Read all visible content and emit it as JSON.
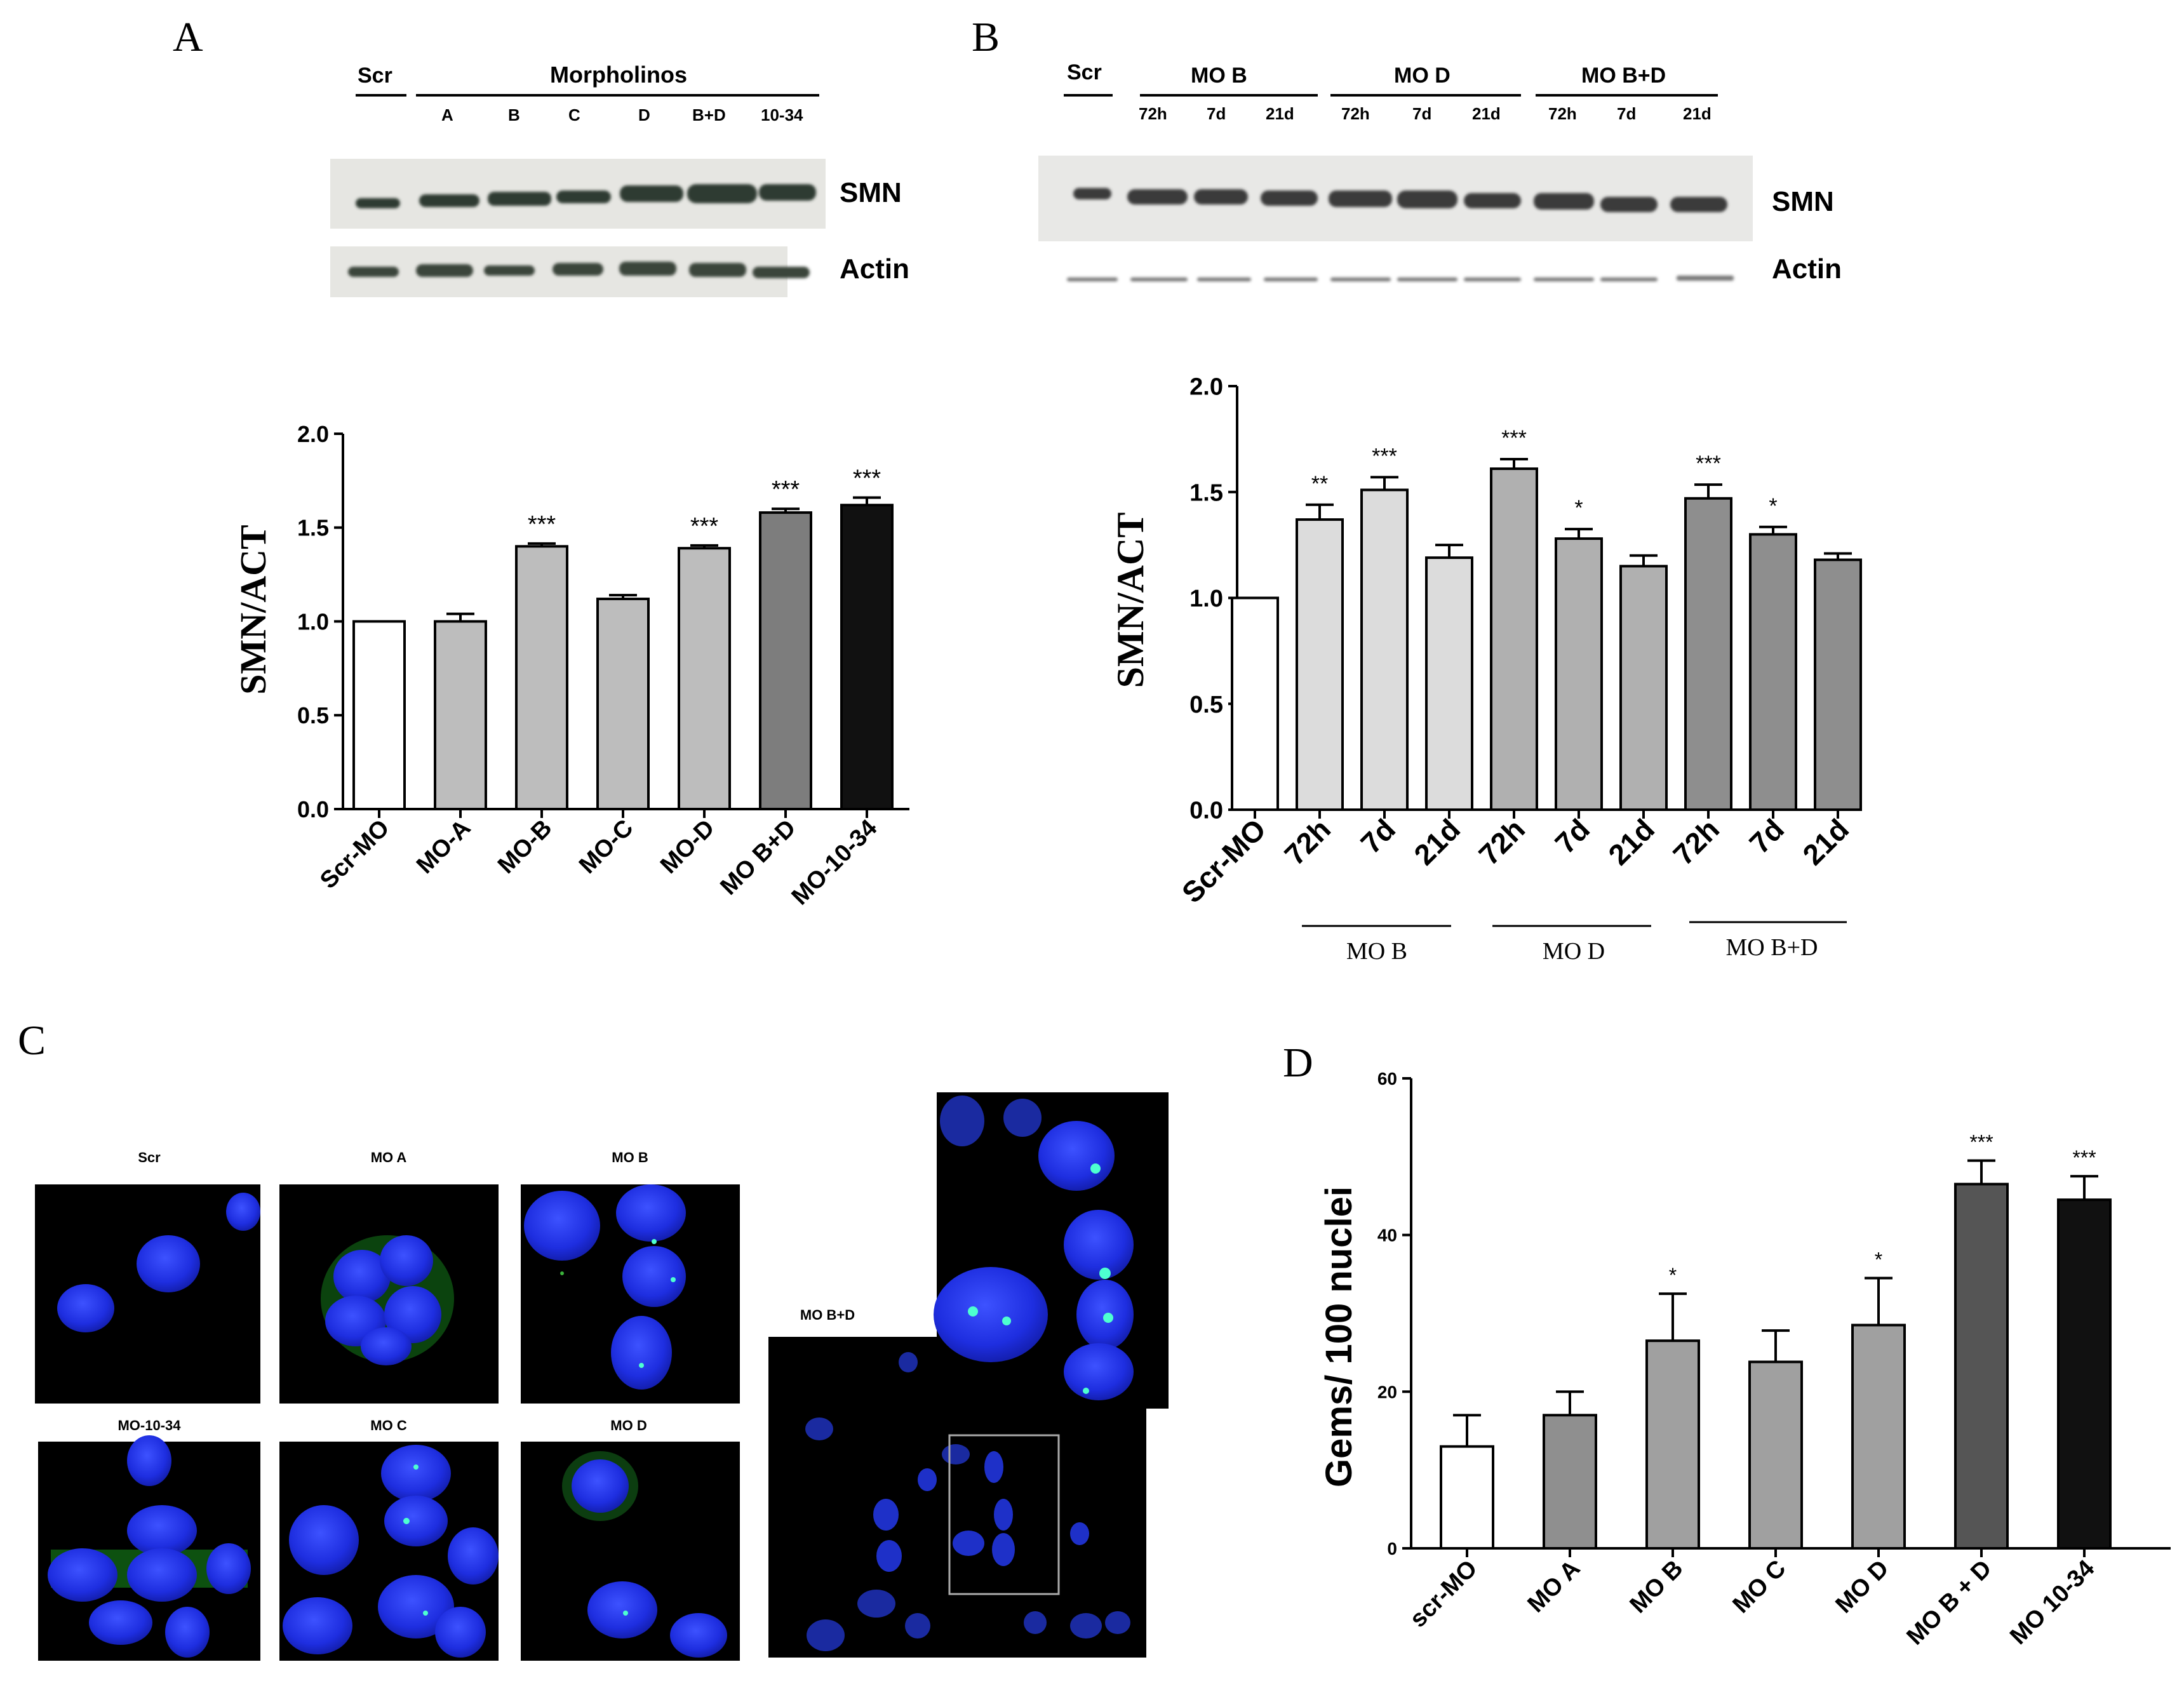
{
  "panels": {
    "A": {
      "letter": "A",
      "blot": {
        "scr_label": "Scr",
        "group_label": "Morpholinos",
        "lanes": [
          "A",
          "B",
          "C",
          "D",
          "B+D",
          "10-34"
        ],
        "bands": [
          "SMN",
          "Actin"
        ]
      }
    },
    "B": {
      "letter": "B",
      "blot": {
        "scr_label": "Scr",
        "groups": [
          {
            "name": "MO B",
            "lanes": [
              "72h",
              "7d",
              "21d"
            ]
          },
          {
            "name": "MO D",
            "lanes": [
              "72h",
              "7d",
              "21d"
            ]
          },
          {
            "name": "MO B+D",
            "lanes": [
              "72h",
              "7d",
              "21d"
            ]
          }
        ],
        "bands": [
          "SMN",
          "Actin"
        ]
      },
      "group_underlines": [
        "MO B",
        "MO D",
        "MO B+D"
      ]
    },
    "C": {
      "letter": "C",
      "images": [
        "Scr",
        "MO A",
        "MO B",
        "MO-10-34",
        "MO C",
        "MO D"
      ],
      "large_image": "MO B+D"
    },
    "D": {
      "letter": "D"
    }
  },
  "chart_data": [
    {
      "type": "bar",
      "panel": "A",
      "ylabel": "SMN/ACT",
      "ylim": [
        0,
        2.0
      ],
      "yticks": [
        "0.0",
        "0.5",
        "1.0",
        "1.5",
        "2.0"
      ],
      "categories": [
        "Scr-MO",
        "MO-A",
        "MO-B",
        "MO-C",
        "MO-D",
        "MO B+D",
        "MO-10-34"
      ],
      "values": [
        1.0,
        1.0,
        1.4,
        1.12,
        1.39,
        1.58,
        1.62
      ],
      "errors": [
        0,
        0.04,
        0.015,
        0.02,
        0.015,
        0.02,
        0.04
      ],
      "significance": [
        "",
        "",
        "***",
        "",
        "***",
        "***",
        "***"
      ],
      "colors": [
        "#ffffff",
        "#bdbdbd",
        "#bdbdbd",
        "#bdbdbd",
        "#bdbdbd",
        "#7d7d7d",
        "#111111"
      ]
    },
    {
      "type": "bar",
      "panel": "B",
      "ylabel": "SMN/ACT",
      "ylim": [
        0,
        2.0
      ],
      "yticks": [
        "0.0",
        "0.5",
        "1.0",
        "1.5",
        "2.0"
      ],
      "categories": [
        "Scr-MO",
        "72h",
        "7d",
        "21d",
        "72h",
        "7d",
        "21d",
        "72h",
        "7d",
        "21d"
      ],
      "values": [
        1.0,
        1.37,
        1.51,
        1.19,
        1.61,
        1.28,
        1.15,
        1.47,
        1.3,
        1.18
      ],
      "errors": [
        0,
        0.07,
        0.06,
        0.06,
        0.045,
        0.045,
        0.05,
        0.065,
        0.035,
        0.03
      ],
      "significance": [
        "",
        "**",
        "***",
        "",
        "***",
        "*",
        "",
        "***",
        "*",
        ""
      ],
      "colors": [
        "#ffffff",
        "#dcdcdc",
        "#dcdcdc",
        "#dcdcdc",
        "#b0b0b0",
        "#b0b0b0",
        "#b0b0b0",
        "#8e8e8e",
        "#8e8e8e",
        "#8e8e8e"
      ]
    },
    {
      "type": "bar",
      "panel": "D",
      "ylabel": "Gems/ 100 nuclei",
      "ylim": [
        0,
        60
      ],
      "yticks": [
        "0",
        "20",
        "40",
        "60"
      ],
      "categories": [
        "scr-MO",
        "MO A",
        "MO B",
        "MO C",
        "MO D",
        "MO B + D",
        "MO 10-34"
      ],
      "values": [
        13,
        17,
        26.5,
        23.8,
        28.5,
        46.5,
        44.5
      ],
      "errors": [
        4,
        3,
        6,
        4,
        6,
        3,
        3
      ],
      "significance": [
        "",
        "",
        "*",
        "",
        "*",
        "***",
        "***"
      ],
      "colors": [
        "#ffffff",
        "#8f8f8f",
        "#a0a0a0",
        "#a0a0a0",
        "#a0a0a0",
        "#555555",
        "#111111"
      ]
    }
  ]
}
